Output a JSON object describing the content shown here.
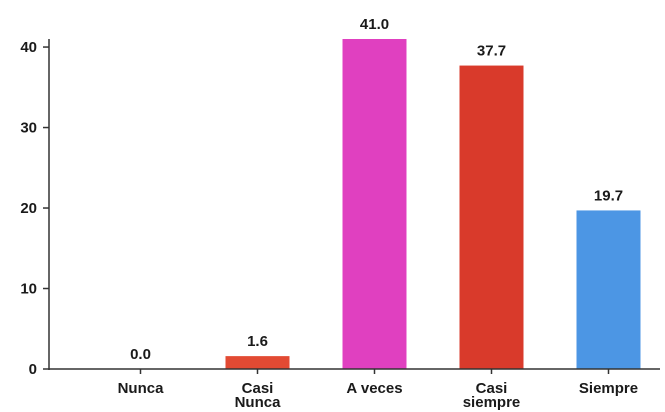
{
  "chart_data": {
    "type": "bar",
    "categories": [
      [
        "Nunca"
      ],
      [
        "Casi",
        "Nunca"
      ],
      [
        "A veces"
      ],
      [
        "Casi",
        "siempre"
      ],
      [
        "Siempre"
      ]
    ],
    "values": [
      0.0,
      1.6,
      41.0,
      37.7,
      19.7
    ],
    "value_labels": [
      "0.0",
      "1.6",
      "41.0",
      "37.7",
      "19.7"
    ],
    "colors": [
      "#e24a33",
      "#e24a33",
      "#e040c0",
      "#d93a2b",
      "#4c96e4"
    ],
    "yticks": [
      0,
      10,
      20,
      30,
      40
    ],
    "ylim": [
      0,
      41
    ],
    "grid": false,
    "title": "",
    "xlabel": "",
    "ylabel": ""
  }
}
